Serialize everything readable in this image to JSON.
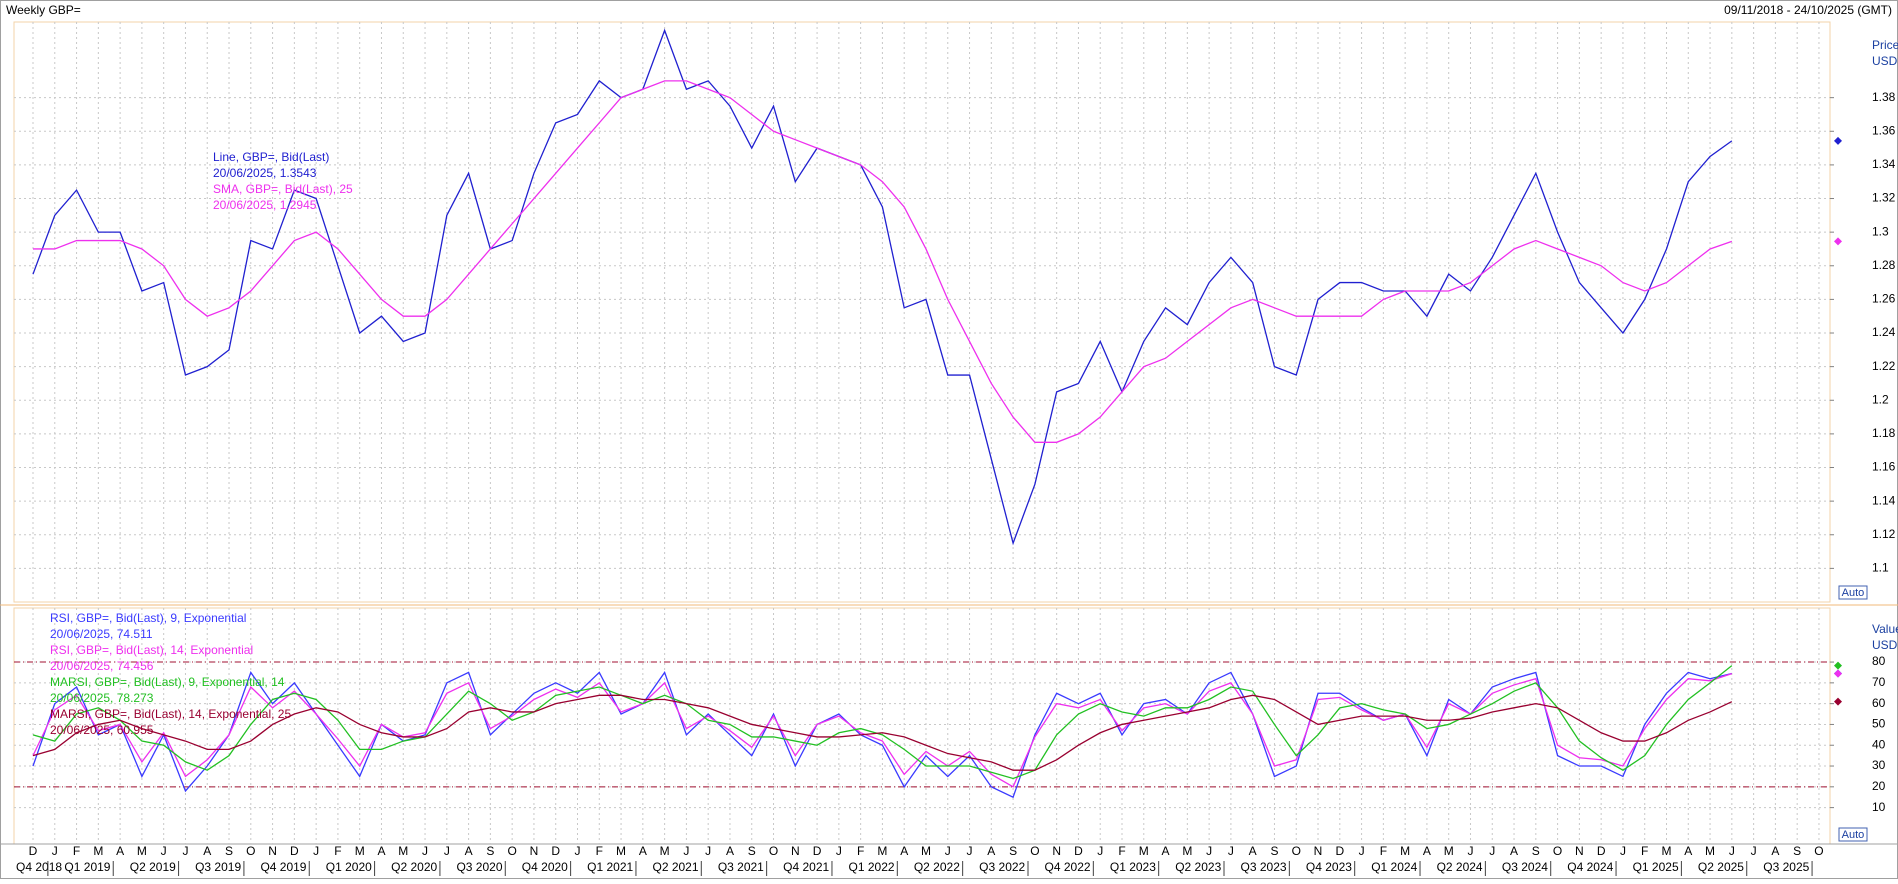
{
  "header": {
    "title": "Weekly GBP=",
    "range": "09/11/2018 - 24/10/2025 (GMT)"
  },
  "chart_data": [
    {
      "type": "line",
      "axis_label": [
        "Price",
        "USD"
      ],
      "auto_label": "Auto",
      "ylim": [
        1.08,
        1.425
      ],
      "yticks": [
        1.1,
        1.12,
        1.14,
        1.16,
        1.18,
        1.2,
        1.22,
        1.24,
        1.26,
        1.28,
        1.3,
        1.32,
        1.34,
        1.36,
        1.38
      ],
      "grid": true,
      "series": [
        {
          "name": "Line, GBP=, Bid(Last)",
          "last": "20/06/2025, 1.3543",
          "color": "#2020d0",
          "values": [
            1.275,
            1.31,
            1.325,
            1.3,
            1.3,
            1.265,
            1.27,
            1.215,
            1.22,
            1.23,
            1.295,
            1.29,
            1.325,
            1.32,
            1.28,
            1.24,
            1.25,
            1.235,
            1.24,
            1.31,
            1.335,
            1.29,
            1.295,
            1.335,
            1.365,
            1.37,
            1.39,
            1.38,
            1.385,
            1.42,
            1.385,
            1.39,
            1.375,
            1.35,
            1.375,
            1.33,
            1.35,
            1.345,
            1.34,
            1.315,
            1.255,
            1.26,
            1.215,
            1.215,
            1.165,
            1.115,
            1.15,
            1.205,
            1.21,
            1.235,
            1.205,
            1.235,
            1.255,
            1.245,
            1.27,
            1.285,
            1.27,
            1.22,
            1.215,
            1.26,
            1.27,
            1.27,
            1.265,
            1.265,
            1.25,
            1.275,
            1.265,
            1.285,
            1.31,
            1.335,
            1.3,
            1.27,
            1.255,
            1.24,
            1.26,
            1.29,
            1.33,
            1.345,
            1.3543,
            null,
            null,
            null,
            null
          ]
        },
        {
          "name": "SMA, GBP=, Bid(Last), 25",
          "last": "20/06/2025, 1.2945",
          "color": "#ee30ee",
          "values": [
            1.29,
            1.29,
            1.295,
            1.295,
            1.295,
            1.29,
            1.28,
            1.26,
            1.25,
            1.255,
            1.265,
            1.28,
            1.295,
            1.3,
            1.29,
            1.275,
            1.26,
            1.25,
            1.25,
            1.26,
            1.275,
            1.29,
            1.305,
            1.32,
            1.335,
            1.35,
            1.365,
            1.38,
            1.385,
            1.39,
            1.39,
            1.385,
            1.38,
            1.37,
            1.36,
            1.355,
            1.35,
            1.345,
            1.34,
            1.33,
            1.315,
            1.29,
            1.26,
            1.235,
            1.21,
            1.19,
            1.175,
            1.175,
            1.18,
            1.19,
            1.205,
            1.22,
            1.225,
            1.235,
            1.245,
            1.255,
            1.26,
            1.255,
            1.25,
            1.25,
            1.25,
            1.25,
            1.26,
            1.265,
            1.265,
            1.265,
            1.27,
            1.28,
            1.29,
            1.295,
            1.29,
            1.285,
            1.28,
            1.27,
            1.265,
            1.27,
            1.28,
            1.29,
            1.2945,
            null,
            null,
            null,
            null
          ]
        }
      ]
    },
    {
      "type": "line",
      "axis_label": [
        "Value",
        "USD"
      ],
      "auto_label": "Auto",
      "ylim": [
        -7.5,
        106
      ],
      "yticks": [
        10,
        20,
        30,
        40,
        50,
        60,
        70,
        80
      ],
      "grid": true,
      "ref_lines": [
        80,
        20
      ],
      "categories": [
        "D",
        "J",
        "F",
        "M",
        "A",
        "M",
        "J",
        "J",
        "A",
        "S",
        "O",
        "N",
        "D",
        "J",
        "F",
        "M",
        "A",
        "M",
        "J",
        "J",
        "A",
        "S",
        "O",
        "N",
        "D",
        "J",
        "F",
        "M",
        "A",
        "M",
        "J",
        "J",
        "A",
        "S",
        "O",
        "N",
        "D",
        "J",
        "F",
        "M",
        "A",
        "M",
        "J",
        "J",
        "A",
        "S",
        "O",
        "N",
        "D",
        "J",
        "F",
        "M",
        "A",
        "M",
        "J",
        "J",
        "A",
        "S",
        "O",
        "N",
        "D",
        "J",
        "F",
        "M",
        "A",
        "M",
        "J",
        "J",
        "A",
        "S",
        "O",
        "N",
        "D",
        "J",
        "F",
        "M",
        "A",
        "M",
        "J",
        "J",
        "A",
        "S",
        "O"
      ],
      "quarters": [
        "Q4 2018",
        "Q1 2019",
        "Q2 2019",
        "Q3 2019",
        "Q4 2019",
        "Q1 2020",
        "Q2 2020",
        "Q3 2020",
        "Q4 2020",
        "Q1 2021",
        "Q2 2021",
        "Q3 2021",
        "Q4 2021",
        "Q1 2022",
        "Q2 2022",
        "Q3 2022",
        "Q4 2022",
        "Q1 2023",
        "Q2 2023",
        "Q3 2023",
        "Q4 2023",
        "Q1 2024",
        "Q2 2024",
        "Q3 2024",
        "Q4 2024",
        "Q1 2025",
        "Q2 2025",
        "Q3 2025"
      ],
      "series": [
        {
          "name": "RSI, GBP=, Bid(Last), 9, Exponential",
          "last": "20/06/2025, 74.511",
          "color": "#3a3aff",
          "values": [
            30,
            60,
            68,
            45,
            50,
            25,
            45,
            18,
            30,
            45,
            75,
            60,
            70,
            55,
            40,
            25,
            50,
            42,
            45,
            70,
            75,
            45,
            55,
            65,
            70,
            65,
            75,
            55,
            60,
            75,
            45,
            55,
            45,
            35,
            55,
            30,
            50,
            55,
            45,
            40,
            20,
            35,
            25,
            35,
            20,
            15,
            45,
            65,
            60,
            65,
            45,
            60,
            62,
            55,
            70,
            75,
            55,
            25,
            30,
            65,
            65,
            58,
            52,
            55,
            35,
            62,
            55,
            68,
            72,
            75,
            35,
            30,
            30,
            25,
            50,
            65,
            75,
            72,
            74.511,
            null,
            null,
            null,
            null
          ]
        },
        {
          "name": "RSI, GBP=, Bid(Last), 14, Exponential",
          "last": "20/06/2025, 74.456",
          "color": "#ee30ee",
          "values": [
            35,
            57,
            64,
            47,
            50,
            32,
            46,
            25,
            33,
            45,
            68,
            58,
            66,
            55,
            43,
            30,
            50,
            44,
            46,
            65,
            70,
            48,
            54,
            62,
            67,
            63,
            70,
            56,
            60,
            70,
            48,
            54,
            47,
            39,
            54,
            35,
            50,
            54,
            46,
            42,
            26,
            37,
            30,
            37,
            26,
            20,
            44,
            60,
            58,
            62,
            47,
            58,
            60,
            55,
            66,
            70,
            55,
            30,
            33,
            62,
            63,
            57,
            52,
            55,
            39,
            60,
            55,
            65,
            69,
            72,
            40,
            34,
            33,
            30,
            48,
            62,
            72,
            71,
            74.456,
            null,
            null,
            null,
            null
          ]
        },
        {
          "name": "MARSI, GBP=, Bid(Last), 9, Exponential, 14",
          "last": "20/06/2025, 78.273",
          "color": "#22c022",
          "values": [
            45,
            42,
            55,
            58,
            52,
            42,
            40,
            32,
            28,
            35,
            50,
            62,
            65,
            62,
            52,
            38,
            38,
            42,
            44,
            55,
            66,
            60,
            52,
            56,
            64,
            66,
            68,
            64,
            60,
            64,
            60,
            52,
            50,
            44,
            44,
            42,
            40,
            46,
            48,
            45,
            38,
            30,
            30,
            30,
            27,
            24,
            28,
            45,
            55,
            60,
            56,
            54,
            58,
            58,
            62,
            68,
            66,
            50,
            35,
            45,
            58,
            60,
            57,
            55,
            48,
            50,
            55,
            60,
            66,
            70,
            58,
            42,
            34,
            28,
            35,
            50,
            62,
            70,
            78.273,
            null,
            null,
            null,
            null
          ]
        },
        {
          "name": "MARSI, GBP=, Bid(Last), 14, Exponential, 25",
          "last": "20/06/2025, 60.955",
          "color": "#990030",
          "values": [
            35,
            38,
            46,
            50,
            52,
            48,
            45,
            42,
            38,
            38,
            42,
            50,
            55,
            58,
            56,
            50,
            46,
            44,
            44,
            48,
            56,
            58,
            56,
            56,
            60,
            62,
            64,
            64,
            62,
            62,
            60,
            58,
            54,
            50,
            48,
            46,
            44,
            44,
            45,
            46,
            44,
            40,
            36,
            34,
            32,
            28,
            28,
            33,
            40,
            46,
            50,
            52,
            54,
            56,
            58,
            62,
            64,
            62,
            56,
            50,
            52,
            54,
            54,
            54,
            52,
            52,
            53,
            56,
            58,
            60,
            58,
            52,
            46,
            42,
            42,
            46,
            52,
            56,
            60.955,
            null,
            null,
            null,
            null
          ]
        }
      ]
    }
  ]
}
